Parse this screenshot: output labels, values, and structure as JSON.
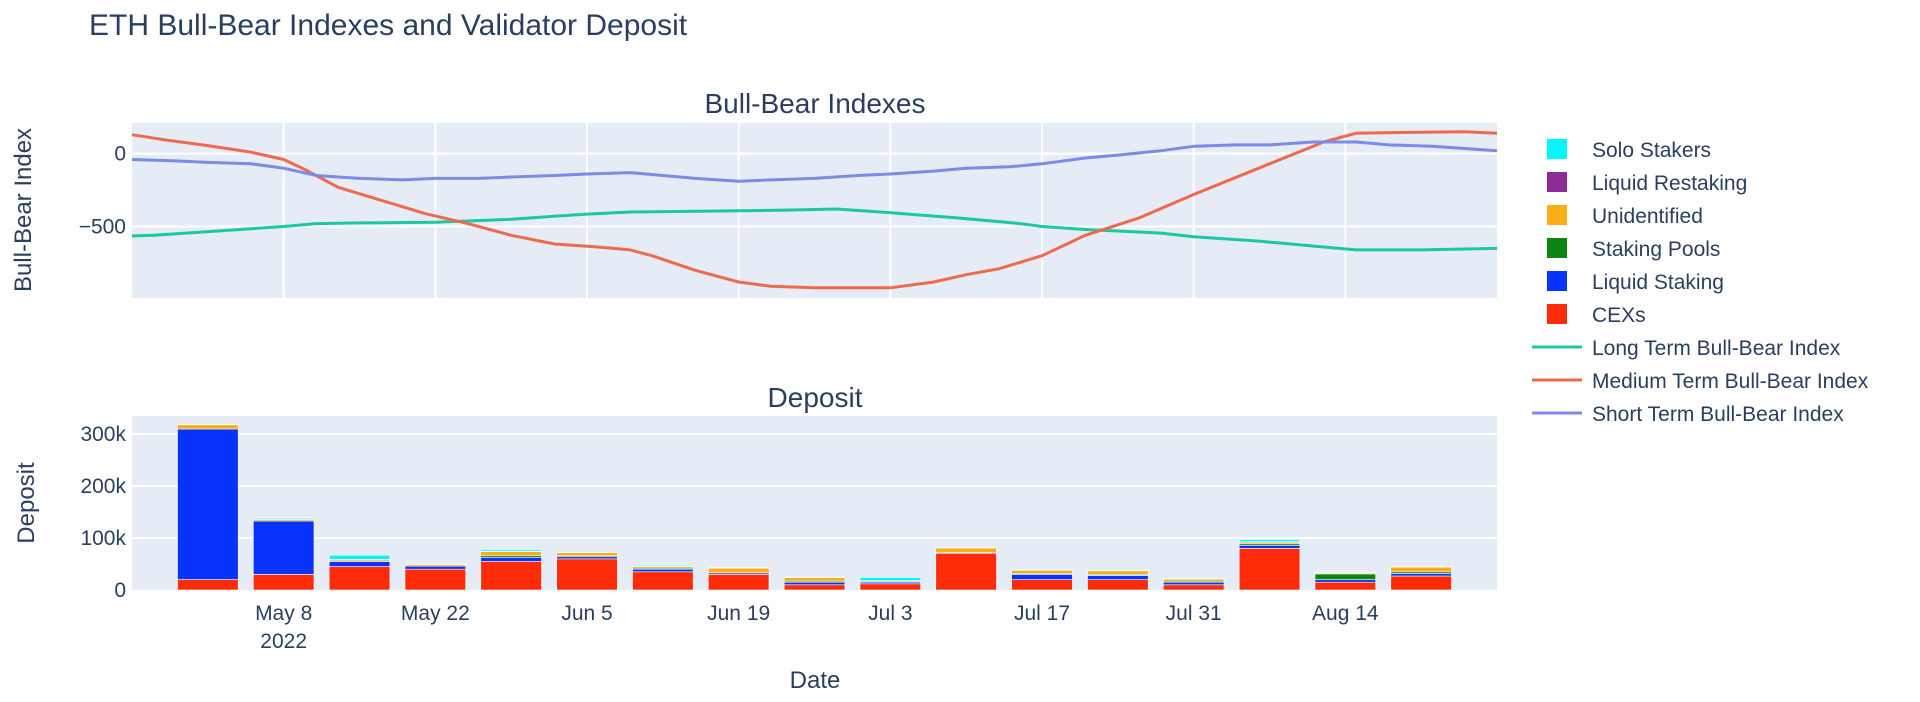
{
  "figure": {
    "title": "ETH Bull-Bear Indexes and Validator Deposit",
    "xlabel": "Date"
  },
  "legend": {
    "placement": "right",
    "items": [
      {
        "label": "Solo Stakers",
        "kind": "square",
        "color": "#00F8FC"
      },
      {
        "label": "Liquid Restaking",
        "kind": "square",
        "color": "#8E2B96"
      },
      {
        "label": "Unidentified",
        "kind": "square",
        "color": "#F9AE16"
      },
      {
        "label": "Staking Pools",
        "kind": "square",
        "color": "#0D8413"
      },
      {
        "label": "Liquid Staking",
        "kind": "square",
        "color": "#0833FB"
      },
      {
        "label": "CEXs",
        "kind": "square",
        "color": "#FD2B08"
      },
      {
        "label": "Long Term Bull-Bear Index",
        "kind": "line",
        "color": "#1CC99E"
      },
      {
        "label": "Medium Term Bull-Bear Index",
        "kind": "line",
        "color": "#EF6A4C"
      },
      {
        "label": "Short Term Bull-Bear Index",
        "kind": "line",
        "color": "#7A8BE8"
      }
    ]
  },
  "chart_data": [
    {
      "type": "line",
      "title": "Bull-Bear Indexes",
      "xlabel": "",
      "ylabel": "Bull-Bear Index",
      "x_type": "date",
      "xlim": [
        "2022-04-24",
        "2022-08-28"
      ],
      "ylim": [
        -990,
        210
      ],
      "yticks": [
        0,
        -500
      ],
      "ytick_labels": [
        "0",
        "−500"
      ],
      "grid": true,
      "series": [
        {
          "name": "Long Term Bull-Bear Index",
          "color": "#1CC99E",
          "x": [
            "2022-04-24",
            "2022-04-26",
            "2022-04-30",
            "2022-05-04",
            "2022-05-08",
            "2022-05-11",
            "2022-05-15",
            "2022-05-22",
            "2022-05-29",
            "2022-06-02",
            "2022-06-05",
            "2022-06-09",
            "2022-06-15",
            "2022-06-21",
            "2022-06-25",
            "2022-06-28",
            "2022-07-03",
            "2022-07-09",
            "2022-07-15",
            "2022-07-17",
            "2022-07-21",
            "2022-07-28",
            "2022-07-31",
            "2022-08-06",
            "2022-08-12",
            "2022-08-15",
            "2022-08-21",
            "2022-08-28"
          ],
          "values": [
            -565,
            -560,
            -540,
            -520,
            -500,
            -480,
            -475,
            -470,
            -450,
            -430,
            -415,
            -400,
            -395,
            -390,
            -385,
            -380,
            -405,
            -440,
            -480,
            -500,
            -520,
            -545,
            -570,
            -600,
            -640,
            -660,
            -660,
            -650
          ]
        },
        {
          "name": "Medium Term Bull-Bear Index",
          "color": "#EF6A4C",
          "x": [
            "2022-04-24",
            "2022-04-27",
            "2022-05-01",
            "2022-05-05",
            "2022-05-08",
            "2022-05-10",
            "2022-05-13",
            "2022-05-17",
            "2022-05-21",
            "2022-05-25",
            "2022-05-29",
            "2022-06-02",
            "2022-06-06",
            "2022-06-09",
            "2022-06-11",
            "2022-06-15",
            "2022-06-19",
            "2022-06-22",
            "2022-06-26",
            "2022-06-30",
            "2022-07-03",
            "2022-07-07",
            "2022-07-10",
            "2022-07-13",
            "2022-07-17",
            "2022-07-21",
            "2022-07-26",
            "2022-07-31",
            "2022-08-07",
            "2022-08-12",
            "2022-08-15",
            "2022-08-19",
            "2022-08-25",
            "2022-08-28"
          ],
          "values": [
            130,
            95,
            55,
            10,
            -40,
            -110,
            -230,
            -320,
            -410,
            -480,
            -560,
            -620,
            -640,
            -660,
            -700,
            -800,
            -880,
            -910,
            -920,
            -920,
            -920,
            -880,
            -830,
            -790,
            -700,
            -560,
            -440,
            -280,
            -70,
            80,
            140,
            145,
            150,
            140
          ]
        },
        {
          "name": "Short Term Bull-Bear Index",
          "color": "#7A8BE8",
          "x": [
            "2022-04-24",
            "2022-04-28",
            "2022-05-01",
            "2022-05-05",
            "2022-05-08",
            "2022-05-11",
            "2022-05-15",
            "2022-05-19",
            "2022-05-22",
            "2022-05-26",
            "2022-05-29",
            "2022-06-02",
            "2022-06-05",
            "2022-06-09",
            "2022-06-12",
            "2022-06-15",
            "2022-06-19",
            "2022-06-22",
            "2022-06-26",
            "2022-06-30",
            "2022-07-03",
            "2022-07-07",
            "2022-07-10",
            "2022-07-14",
            "2022-07-17",
            "2022-07-21",
            "2022-07-24",
            "2022-07-28",
            "2022-07-31",
            "2022-08-04",
            "2022-08-07",
            "2022-08-11",
            "2022-08-15",
            "2022-08-18",
            "2022-08-22",
            "2022-08-28"
          ],
          "values": [
            -40,
            -50,
            -60,
            -70,
            -100,
            -150,
            -170,
            -180,
            -170,
            -170,
            -160,
            -150,
            -140,
            -130,
            -150,
            -170,
            -190,
            -180,
            -170,
            -150,
            -140,
            -120,
            -100,
            -90,
            -70,
            -30,
            -10,
            20,
            50,
            60,
            60,
            80,
            80,
            60,
            50,
            20
          ]
        }
      ]
    },
    {
      "type": "bar",
      "stacked": true,
      "title": "Deposit",
      "xlabel": "Date",
      "ylabel": "Deposit",
      "x_type": "date",
      "xlim": [
        "2022-04-24",
        "2022-08-28"
      ],
      "ylim": [
        0,
        335000
      ],
      "yticks": [
        0,
        100000,
        200000,
        300000
      ],
      "ytick_labels": [
        "0",
        "100k",
        "200k",
        "300k"
      ],
      "xticks": [
        "2022-05-08",
        "2022-05-22",
        "2022-06-05",
        "2022-06-19",
        "2022-07-03",
        "2022-07-17",
        "2022-07-31",
        "2022-08-14"
      ],
      "xtick_labels": [
        "May 8\n2022",
        "May 22",
        "Jun 5",
        "Jun 19",
        "Jul 3",
        "Jul 17",
        "Jul 31",
        "Aug 14"
      ],
      "grid": true,
      "x": [
        "2022-05-01",
        "2022-05-08",
        "2022-05-15",
        "2022-05-22",
        "2022-05-29",
        "2022-06-05",
        "2022-06-12",
        "2022-06-19",
        "2022-06-26",
        "2022-07-03",
        "2022-07-10",
        "2022-07-17",
        "2022-07-24",
        "2022-07-31",
        "2022-08-07",
        "2022-08-14",
        "2022-08-21"
      ],
      "series": [
        {
          "name": "CEXs",
          "color": "#FD2B08",
          "values": [
            20000,
            30000,
            45000,
            40000,
            55000,
            60000,
            35000,
            30000,
            10000,
            12000,
            70000,
            20000,
            20000,
            10000,
            80000,
            15000,
            27000
          ]
        },
        {
          "name": "Liquid Staking",
          "color": "#0833FB",
          "values": [
            290000,
            103000,
            10000,
            6000,
            8000,
            4000,
            5000,
            3000,
            5000,
            3000,
            2000,
            10000,
            8000,
            5000,
            6000,
            5000,
            5000
          ]
        },
        {
          "name": "Staking Pools",
          "color": "#0D8413",
          "values": [
            0,
            0,
            0,
            0,
            3000,
            2000,
            2000,
            0,
            2000,
            0,
            0,
            2000,
            2000,
            2000,
            3000,
            11000,
            3000
          ]
        },
        {
          "name": "Unidentified",
          "color": "#F9AE16",
          "values": [
            8000,
            3000,
            3000,
            3000,
            8000,
            6000,
            3000,
            9000,
            7000,
            2000,
            9000,
            6000,
            7000,
            4000,
            3000,
            2000,
            9000
          ]
        },
        {
          "name": "Liquid Restaking",
          "color": "#8E2B96",
          "values": [
            1000,
            1000,
            1000,
            1000,
            1000,
            1000,
            1000,
            1000,
            1000,
            1000,
            1000,
            1000,
            1000,
            1000,
            1000,
            1000,
            1000
          ]
        },
        {
          "name": "Solo Stakers",
          "color": "#00F8FC",
          "values": [
            0,
            2000,
            8000,
            0,
            3000,
            0,
            2000,
            0,
            0,
            6000,
            0,
            0,
            0,
            0,
            4000,
            0,
            0
          ]
        }
      ]
    }
  ]
}
